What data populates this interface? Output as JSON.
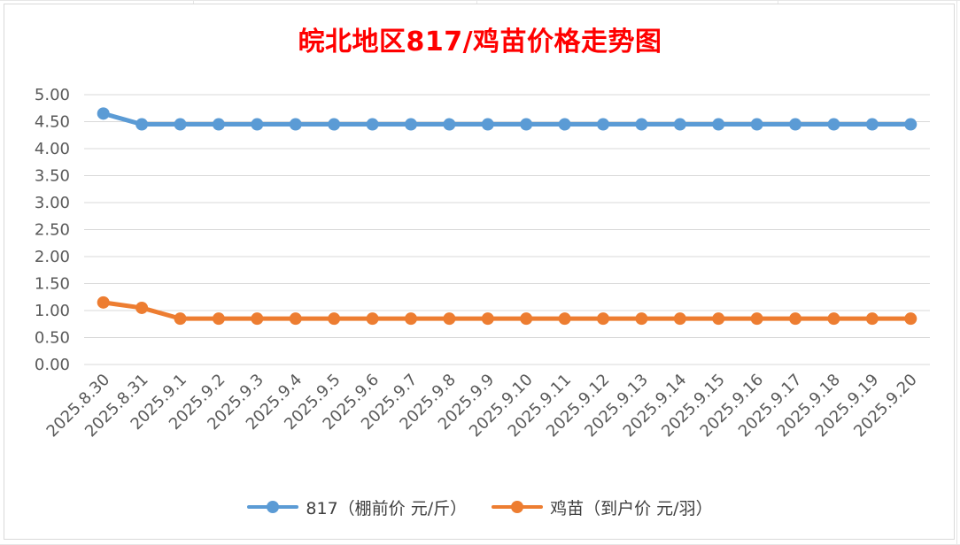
{
  "colors": {
    "title": "#ff0000",
    "series_817": "#5b9bd5",
    "series_jimiao": "#ed7d31",
    "grid": "#d9d9d9",
    "tick_text": "#595959"
  },
  "chart_data": {
    "type": "line",
    "title": "皖北地区817/鸡苗价格走势图",
    "xlabel": "",
    "ylabel": "",
    "ylim": [
      0,
      5
    ],
    "y_ticks": [
      "0.00",
      "0.50",
      "1.00",
      "1.50",
      "2.00",
      "2.50",
      "3.00",
      "3.50",
      "4.00",
      "4.50",
      "5.00"
    ],
    "grid": true,
    "legend_position": "bottom",
    "categories": [
      "2025.8.30",
      "2025.8.31",
      "2025.9.1",
      "2025.9.2",
      "2025.9.3",
      "2025.9.4",
      "2025.9.5",
      "2025.9.6",
      "2025.9.7",
      "2025.9.8",
      "2025.9.9",
      "2025.9.10",
      "2025.9.11",
      "2025.9.12",
      "2025.9.13",
      "2025.9.14",
      "2025.9.15",
      "2025.9.16",
      "2025.9.17",
      "2025.9.18",
      "2025.9.19",
      "2025.9.20"
    ],
    "series": [
      {
        "name": "817（棚前价 元/斤）",
        "color": "#5b9bd5",
        "values": [
          4.65,
          4.45,
          4.45,
          4.45,
          4.45,
          4.45,
          4.45,
          4.45,
          4.45,
          4.45,
          4.45,
          4.45,
          4.45,
          4.45,
          4.45,
          4.45,
          4.45,
          4.45,
          4.45,
          4.45,
          4.45,
          4.45
        ]
      },
      {
        "name": "鸡苗（到户价 元/羽）",
        "color": "#ed7d31",
        "values": [
          1.15,
          1.05,
          0.85,
          0.85,
          0.85,
          0.85,
          0.85,
          0.85,
          0.85,
          0.85,
          0.85,
          0.85,
          0.85,
          0.85,
          0.85,
          0.85,
          0.85,
          0.85,
          0.85,
          0.85,
          0.85,
          0.85
        ]
      }
    ]
  }
}
